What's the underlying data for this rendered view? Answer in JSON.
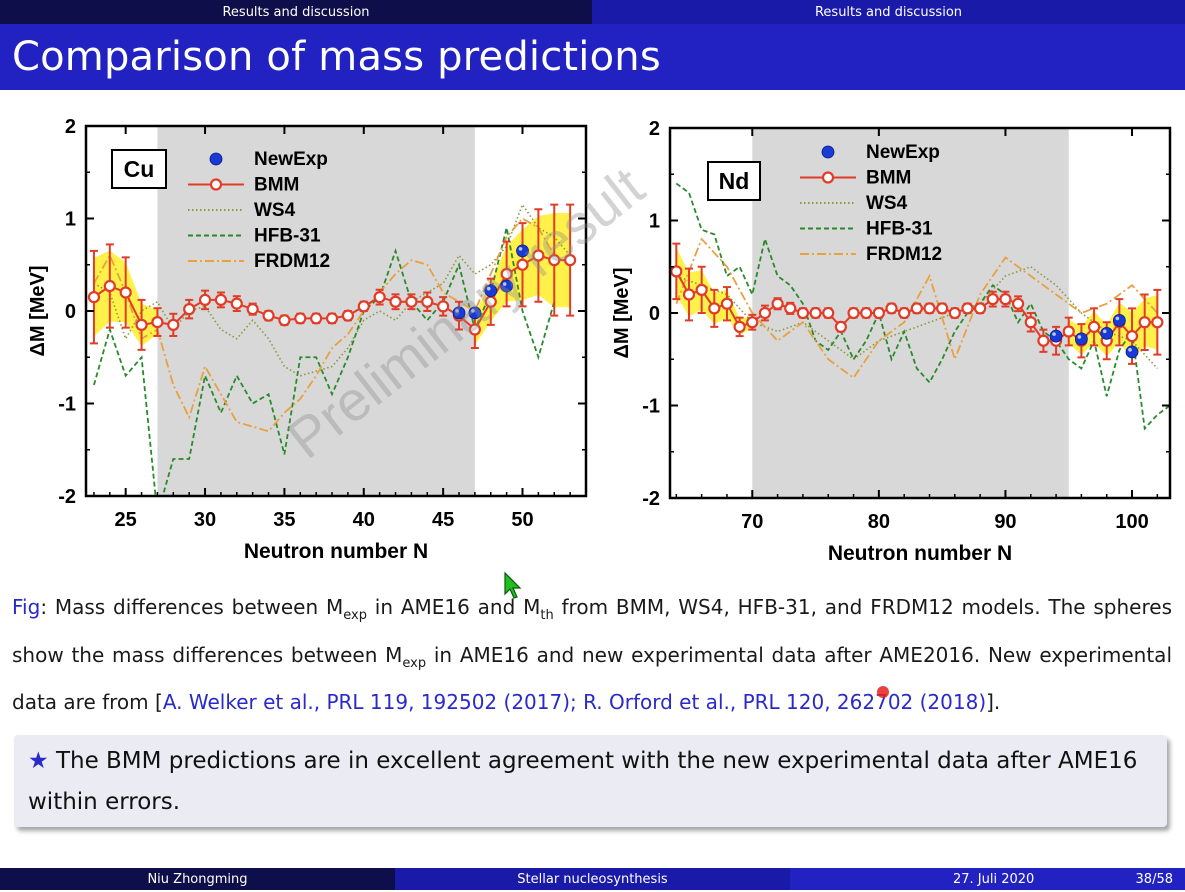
{
  "nav": {
    "left_section": "Results and discussion",
    "right_section": "Results and discussion"
  },
  "slide": {
    "title": "Comparison of mass predictions"
  },
  "watermark": "Preliminary result",
  "legend": {
    "newexp": "NewExp",
    "bmm": "BMM",
    "ws4": "WS4",
    "hfb": "HFB-31",
    "frdm": "FRDM12"
  },
  "colors": {
    "bmm": "#e03c28",
    "newexp": "#1a3ad6",
    "ws4": "#8a9a3a",
    "hfb": "#2a8a2a",
    "frdm": "#e8a040",
    "band": "#fff04a",
    "shade": "#d8d8d8"
  },
  "chart_data": [
    {
      "type": "line",
      "element": "Cu",
      "xlabel": "Neutron number N",
      "ylabel": "ΔM [MeV]",
      "xlim": [
        22.5,
        54
      ],
      "ylim": [
        -2,
        2
      ],
      "xticks": [
        25,
        30,
        35,
        40,
        45,
        50
      ],
      "yticks": [
        -2,
        -1,
        0,
        1,
        2
      ],
      "shaded_x": [
        27,
        47
      ],
      "series": [
        {
          "name": "BMM",
          "x": [
            23,
            24,
            25,
            26,
            27,
            28,
            29,
            30,
            31,
            32,
            33,
            34,
            35,
            36,
            37,
            38,
            39,
            40,
            41,
            42,
            43,
            44,
            45,
            46,
            47,
            48,
            49,
            50,
            51,
            52,
            53
          ],
          "y": [
            0.15,
            0.27,
            0.2,
            -0.15,
            -0.12,
            -0.15,
            0.02,
            0.12,
            0.12,
            0.08,
            0.02,
            -0.05,
            -0.1,
            -0.08,
            -0.08,
            -0.08,
            -0.05,
            0.05,
            0.15,
            0.1,
            0.1,
            0.1,
            0.05,
            -0.05,
            -0.2,
            0.1,
            0.4,
            0.5,
            0.6,
            0.55,
            0.55
          ],
          "err": [
            0.5,
            0.45,
            0.38,
            0.27,
            0.15,
            0.12,
            0.1,
            0.1,
            0.08,
            0.08,
            0.06,
            0.05,
            0.05,
            0.05,
            0.05,
            0.05,
            0.05,
            0.05,
            0.08,
            0.08,
            0.08,
            0.1,
            0.1,
            0.15,
            0.2,
            0.25,
            0.35,
            0.45,
            0.5,
            0.6,
            0.6
          ]
        },
        {
          "name": "NewExp",
          "x": [
            46,
            47,
            48,
            49,
            50
          ],
          "y": [
            -0.02,
            -0.02,
            0.22,
            0.27,
            0.65
          ]
        },
        {
          "name": "WS4",
          "x": [
            23,
            24,
            25,
            26,
            27,
            28,
            29,
            30,
            31,
            32,
            33,
            34,
            35,
            36,
            37,
            38,
            39,
            40,
            41,
            42,
            43,
            44,
            45,
            46,
            47,
            48,
            49,
            50,
            51,
            52,
            53
          ],
          "y": [
            0.3,
            0.2,
            -0.3,
            0.0,
            0.1,
            -0.2,
            0.0,
            0.05,
            -0.2,
            -0.3,
            -0.1,
            -0.3,
            -0.6,
            -0.7,
            -0.65,
            -0.6,
            -0.4,
            -0.1,
            0.0,
            -0.1,
            0.1,
            0.2,
            0.3,
            0.6,
            0.4,
            0.5,
            0.7,
            1.15,
            0.9,
            0.8,
            0.6
          ]
        },
        {
          "name": "HFB-31",
          "x": [
            23,
            24,
            25,
            26,
            27,
            28,
            29,
            30,
            31,
            32,
            33,
            34,
            35,
            36,
            37,
            38,
            39,
            40,
            41,
            42,
            43,
            44,
            45,
            46,
            47,
            48,
            49,
            50,
            51,
            52
          ],
          "y": [
            -0.8,
            -0.2,
            -0.7,
            -0.5,
            -2.2,
            -1.6,
            -1.6,
            -0.7,
            -1.1,
            -0.7,
            -1.0,
            -0.9,
            -1.55,
            -0.5,
            -0.5,
            -0.9,
            -0.5,
            0.0,
            0.15,
            0.65,
            0.1,
            -0.1,
            0.1,
            0.5,
            -0.2,
            0.2,
            0.9,
            0.0,
            -0.5,
            0.1
          ]
        },
        {
          "name": "FRDM12",
          "x": [
            23,
            24,
            25,
            26,
            27,
            28,
            29,
            30,
            31,
            32,
            33,
            34,
            35,
            36,
            37,
            38,
            39,
            40,
            41,
            42,
            43,
            44,
            45,
            46,
            47,
            48,
            49,
            50,
            51,
            52,
            53
          ],
          "y": [
            0.3,
            0.6,
            0.2,
            -0.3,
            -0.2,
            -0.8,
            -1.15,
            -0.6,
            -0.9,
            -1.2,
            -1.25,
            -1.3,
            -1.1,
            -0.95,
            -0.7,
            -0.4,
            -0.25,
            0.0,
            0.2,
            0.4,
            0.55,
            0.5,
            0.2,
            0.1,
            0.0,
            0.4,
            0.8,
            1.0,
            0.9,
            0.6,
            0.5
          ]
        }
      ]
    },
    {
      "type": "line",
      "element": "Nd",
      "xlabel": "Neutron number N",
      "ylabel": "ΔM [MeV]",
      "xlim": [
        63.5,
        103
      ],
      "ylim": [
        -2,
        2
      ],
      "xticks": [
        70,
        80,
        90,
        100
      ],
      "yticks": [
        -2,
        -1,
        0,
        1,
        2
      ],
      "shaded_x": [
        70,
        95
      ],
      "series": [
        {
          "name": "BMM",
          "x": [
            64,
            65,
            66,
            67,
            68,
            69,
            70,
            71,
            72,
            73,
            74,
            75,
            76,
            77,
            78,
            79,
            80,
            81,
            82,
            83,
            84,
            85,
            86,
            87,
            88,
            89,
            90,
            91,
            92,
            93,
            94,
            95,
            96,
            97,
            98,
            99,
            100,
            101,
            102
          ],
          "y": [
            0.45,
            0.2,
            0.25,
            0.05,
            0.1,
            -0.15,
            -0.1,
            0.0,
            0.1,
            0.05,
            0.0,
            0.0,
            0.0,
            -0.15,
            0.0,
            0.0,
            0.0,
            0.05,
            0.0,
            0.05,
            0.05,
            0.05,
            0.0,
            0.05,
            0.05,
            0.15,
            0.15,
            0.1,
            -0.1,
            -0.3,
            -0.3,
            -0.2,
            -0.3,
            -0.15,
            -0.3,
            -0.1,
            -0.25,
            -0.1,
            -0.1
          ],
          "err": [
            0.3,
            0.28,
            0.25,
            0.2,
            0.18,
            0.1,
            0.08,
            0.08,
            0.06,
            0.06,
            0.05,
            0.05,
            0.05,
            0.05,
            0.05,
            0.05,
            0.05,
            0.05,
            0.05,
            0.05,
            0.05,
            0.05,
            0.05,
            0.05,
            0.05,
            0.08,
            0.08,
            0.08,
            0.1,
            0.12,
            0.15,
            0.15,
            0.18,
            0.2,
            0.2,
            0.25,
            0.3,
            0.3,
            0.35
          ]
        },
        {
          "name": "NewExp",
          "x": [
            94,
            96,
            98,
            99,
            100
          ],
          "y": [
            -0.25,
            -0.28,
            -0.22,
            -0.08,
            -0.42
          ]
        },
        {
          "name": "WS4",
          "x": [
            64,
            66,
            68,
            70,
            72,
            74,
            76,
            78,
            80,
            82,
            84,
            86,
            88,
            90,
            92,
            94,
            96,
            98,
            100,
            102
          ],
          "y": [
            0.4,
            0.3,
            0.2,
            -0.1,
            -0.2,
            -0.1,
            -0.3,
            -0.5,
            -0.3,
            -0.2,
            -0.1,
            0.0,
            0.1,
            0.4,
            0.5,
            0.3,
            0.0,
            -0.2,
            -0.3,
            -0.6
          ]
        },
        {
          "name": "HFB-31",
          "x": [
            64,
            65,
            66,
            67,
            68,
            69,
            70,
            71,
            72,
            73,
            74,
            75,
            76,
            77,
            78,
            79,
            80,
            81,
            82,
            83,
            84,
            85,
            86,
            87,
            88,
            89,
            90,
            91,
            92,
            93,
            94,
            95,
            96,
            97,
            98,
            99,
            100,
            101,
            102,
            103
          ],
          "y": [
            1.4,
            1.3,
            0.9,
            0.85,
            0.4,
            0.5,
            0.2,
            0.8,
            0.4,
            0.3,
            0.1,
            -0.3,
            -0.4,
            -0.2,
            -0.5,
            -0.3,
            0.0,
            -0.5,
            -0.2,
            -0.6,
            -0.75,
            -0.5,
            -0.2,
            0.0,
            0.1,
            0.3,
            0.2,
            -0.1,
            0.1,
            -0.2,
            -0.3,
            -0.5,
            -0.6,
            -0.3,
            -0.9,
            -0.4,
            -0.2,
            -1.25,
            -1.1,
            -1.0
          ]
        },
        {
          "name": "FRDM12",
          "x": [
            64,
            66,
            68,
            70,
            72,
            74,
            76,
            78,
            80,
            82,
            84,
            86,
            88,
            90,
            92,
            94,
            96,
            98,
            100,
            102
          ],
          "y": [
            0.1,
            0.8,
            0.5,
            0.0,
            -0.3,
            -0.1,
            -0.5,
            -0.7,
            -0.3,
            -0.1,
            0.4,
            -0.5,
            0.2,
            0.6,
            0.4,
            0.2,
            0.0,
            0.1,
            0.3,
            0.0
          ]
        }
      ]
    }
  ],
  "caption": {
    "fig_label": "Fig",
    "text_1": ": Mass differences between M",
    "sub_exp": "exp",
    "text_2": " in AME16 and M",
    "sub_th": "th",
    "text_3": " from BMM, WS4, HFB-31, and FRDM12 models. The spheres show the mass differences between M",
    "sub_exp2": "exp",
    "text_4": " in AME16 and new experimental data after AME2016. New experimental data are from [",
    "ref_1": "A. Welker et al., PRL 119, 192502 (2017); R. Orford et al., PRL 120, 262702 (2018)",
    "text_5": "]."
  },
  "conclusion": {
    "star": "★",
    "text": "The BMM predictions are in excellent agreement with the new experimental data after AME16 within errors."
  },
  "footer": {
    "author": "Niu Zhongming",
    "topic": "Stellar nucleosynthesis",
    "date": "27. Juli 2020",
    "page": "38/58"
  }
}
